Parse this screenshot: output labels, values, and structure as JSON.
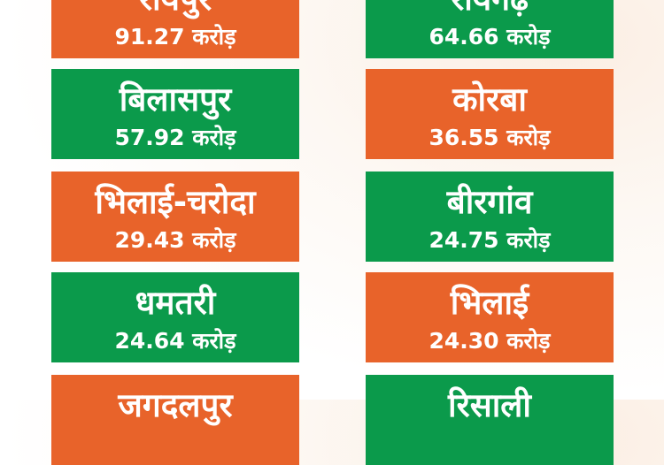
{
  "colors": {
    "orange": "#E8632A",
    "green": "#0B9A4B"
  },
  "cities": [
    {
      "name": "रायपुर",
      "value": "91.27 करोड़"
    },
    {
      "name": "रायगढ़",
      "value": "64.66 करोड़"
    },
    {
      "name": "बिलासपुर",
      "value": "57.92 करोड़"
    },
    {
      "name": "कोरबा",
      "value": "36.55 करोड़"
    },
    {
      "name": "भिलाई-चरोदा",
      "value": "29.43 करोड़"
    },
    {
      "name": "बीरगांव",
      "value": "24.75 करोड़"
    },
    {
      "name": "धमतरी",
      "value": "24.64 करोड़"
    },
    {
      "name": "भिलाई",
      "value": "24.30 करोड़"
    },
    {
      "name": "जगदलपुर",
      "value": ""
    },
    {
      "name": "रिसाली",
      "value": ""
    }
  ]
}
